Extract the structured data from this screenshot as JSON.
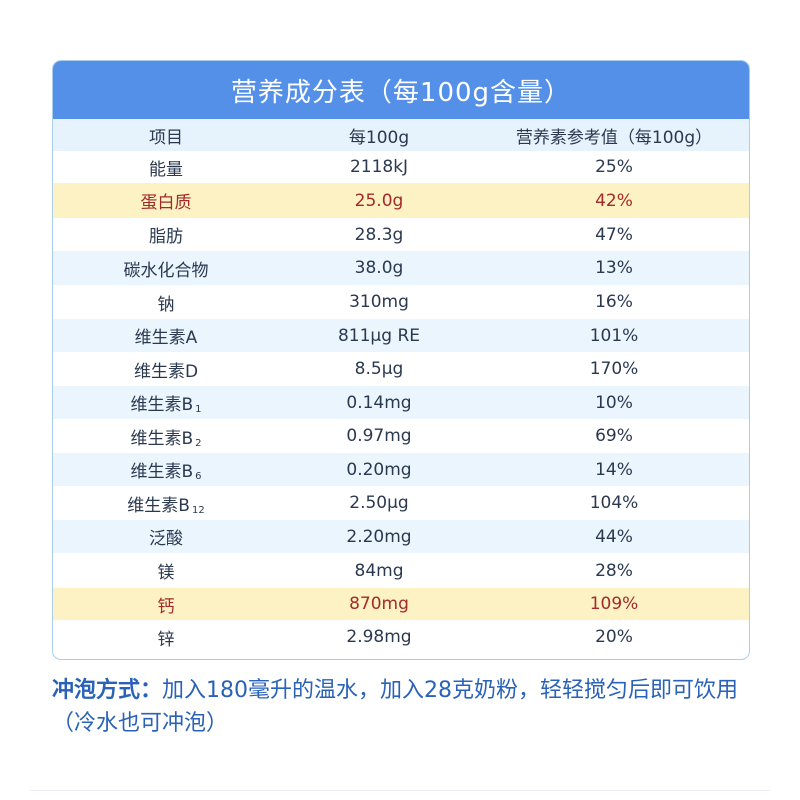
{
  "table": {
    "title": "营养成分表（每100g含量）",
    "headers": [
      "项目",
      "每100g",
      "营养素参考值（每100g）"
    ],
    "rows": [
      {
        "item": "能量",
        "per100g": "2118kJ",
        "nrv": "25%",
        "highlight": false
      },
      {
        "item": "蛋白质",
        "per100g": "25.0g",
        "nrv": "42%",
        "highlight": true
      },
      {
        "item": "脂肪",
        "per100g": "28.3g",
        "nrv": "47%",
        "highlight": false
      },
      {
        "item": "碳水化合物",
        "per100g": "38.0g",
        "nrv": "13%",
        "highlight": false
      },
      {
        "item": "钠",
        "per100g": "310mg",
        "nrv": "16%",
        "highlight": false
      },
      {
        "item": "维生素A",
        "per100g": "811μg RE",
        "nrv": "101%",
        "highlight": false
      },
      {
        "item": "维生素D",
        "per100g": "8.5μg",
        "nrv": "170%",
        "highlight": false
      },
      {
        "item": "维生素B",
        "sub": "1",
        "per100g": "0.14mg",
        "nrv": "10%",
        "highlight": false
      },
      {
        "item": "维生素B",
        "sub": "2",
        "per100g": "0.97mg",
        "nrv": "69%",
        "highlight": false
      },
      {
        "item": "维生素B",
        "sub": "6",
        "per100g": "0.20mg",
        "nrv": "14%",
        "highlight": false
      },
      {
        "item": "维生素B",
        "sub": "12",
        "per100g": "2.50μg",
        "nrv": "104%",
        "highlight": false
      },
      {
        "item": "泛酸",
        "per100g": "2.20mg",
        "nrv": "44%",
        "highlight": false
      },
      {
        "item": "镁",
        "per100g": "84mg",
        "nrv": "28%",
        "highlight": false
      },
      {
        "item": "钙",
        "per100g": "870mg",
        "nrv": "109%",
        "highlight": true
      },
      {
        "item": "锌",
        "per100g": "2.98mg",
        "nrv": "20%",
        "highlight": false
      }
    ]
  },
  "footer": {
    "label": "冲泡方式：",
    "text": "加入180毫升的温水，加入28克奶粉，轻轻搅匀后即可饮用（冷水也可冲泡）"
  },
  "colors": {
    "title_bg": "#5590e8",
    "header_bg": "#e6f3fc",
    "stripe_bg": "#eaf5fd",
    "highlight_bg": "#fcf2c4",
    "highlight_text": "#a22a2a",
    "footer_text": "#2a62b8"
  }
}
